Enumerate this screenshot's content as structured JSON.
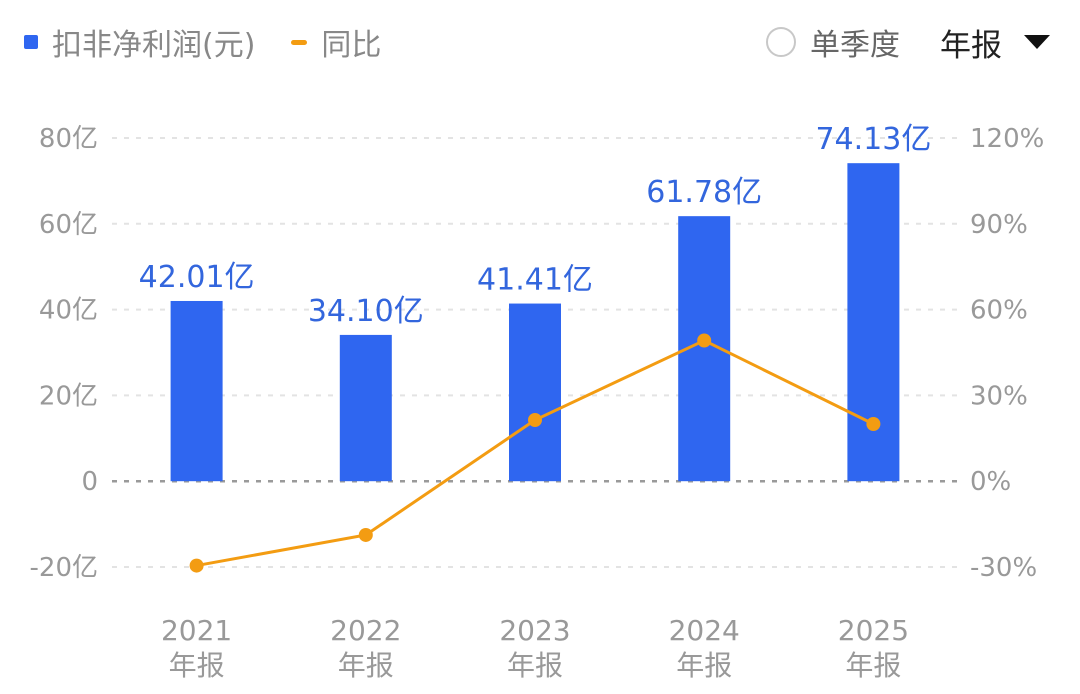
{
  "legend": {
    "bar_label": "扣非净利润(元)",
    "line_label": "同比"
  },
  "controls": {
    "radio_label": "单季度",
    "period_label": "年报"
  },
  "colors": {
    "bar": "#2f66f0",
    "line": "#f39c12",
    "grid": "#e3e3e3",
    "zero": "#9a9a9a",
    "label": "#3366dd"
  },
  "chart_data": {
    "type": "bar",
    "categories": [
      [
        "2021",
        "年报"
      ],
      [
        "2022",
        "年报"
      ],
      [
        "2023",
        "年报"
      ],
      [
        "2024",
        "年报"
      ],
      [
        "2025",
        "年报"
      ]
    ],
    "series": [
      {
        "name": "扣非净利润(元)",
        "type": "bar",
        "axis": "left",
        "values": [
          42.01,
          34.1,
          41.41,
          61.78,
          74.13
        ],
        "labels": [
          "42.01亿",
          "34.10亿",
          "41.41亿",
          "61.78亿",
          "74.13亿"
        ]
      },
      {
        "name": "同比",
        "type": "line",
        "axis": "right",
        "values": [
          -29.5,
          -18.8,
          21.4,
          49.2,
          20.0
        ]
      }
    ],
    "y_left": {
      "range": [
        -20,
        80
      ],
      "ticks": [
        80,
        60,
        40,
        20,
        0,
        -20
      ],
      "tick_labels": [
        "80亿",
        "60亿",
        "40亿",
        "20亿",
        "0",
        "-20亿"
      ]
    },
    "y_right": {
      "range": [
        -30,
        120
      ],
      "ticks": [
        120,
        90,
        60,
        30,
        0,
        -30
      ],
      "tick_labels": [
        "120%",
        "90%",
        "60%",
        "30%",
        "0%",
        "-30%"
      ]
    },
    "grid": true,
    "legend": "top-left"
  }
}
